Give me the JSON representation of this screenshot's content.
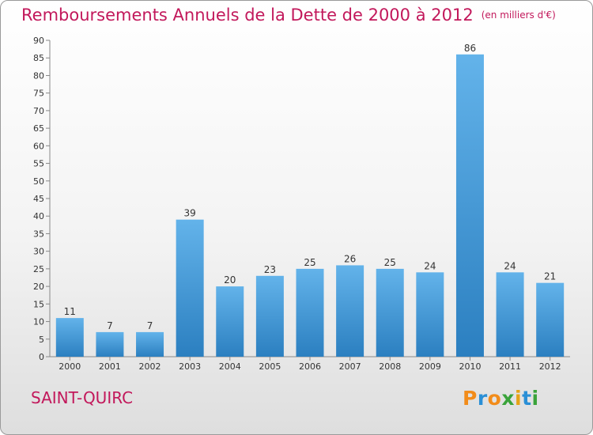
{
  "header": {
    "title": "Remboursements Annuels de la Dette de 2000 à 2012",
    "unit": "(en milliers d'€)"
  },
  "footer": {
    "city": "SAINT-QUIRC",
    "logo": "Proxiti"
  },
  "colors": {
    "title": "#c2185b",
    "bar_light": "#63b3ea",
    "bar_dark": "#2b7fc0",
    "logo_letters": [
      "#f28c1a",
      "#2a8fd6",
      "#f28c1a",
      "#3aa33a",
      "#e6a317",
      "#2a8fd6",
      "#3aa33a"
    ]
  },
  "chart_data": {
    "type": "bar",
    "title": "Remboursements Annuels de la Dette de 2000 à 2012",
    "subtitle": "(en milliers d'€)",
    "categories": [
      "2000",
      "2001",
      "2002",
      "2003",
      "2004",
      "2005",
      "2006",
      "2007",
      "2008",
      "2009",
      "2010",
      "2011",
      "2012"
    ],
    "values": [
      11,
      7,
      7,
      39,
      20,
      23,
      25,
      26,
      25,
      24,
      86,
      24,
      21
    ],
    "ylim": [
      0,
      90
    ],
    "yticks": [
      0,
      5,
      10,
      15,
      20,
      25,
      30,
      35,
      40,
      45,
      50,
      55,
      60,
      65,
      70,
      75,
      80,
      85,
      90
    ],
    "grid": false,
    "data_labels": true
  }
}
